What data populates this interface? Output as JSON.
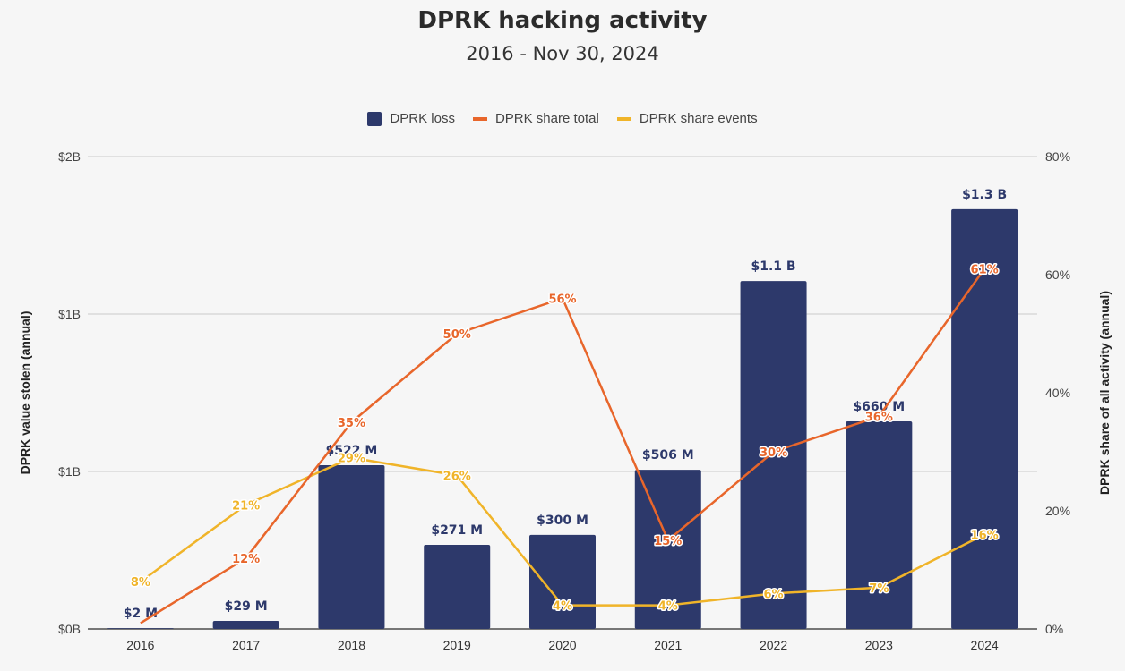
{
  "chart_data": {
    "type": "bar",
    "title": "DPRK hacking activity",
    "subtitle": "2016 - Nov 30, 2024",
    "categories": [
      "2016",
      "2017",
      "2018",
      "2019",
      "2020",
      "2021",
      "2022",
      "2023",
      "2024"
    ],
    "legend_position": "top-center",
    "left_axis": {
      "label": "DPRK value stolen (annual)",
      "range": [
        0,
        2
      ],
      "units": "billions USD",
      "ticks": [
        {
          "value": 0,
          "label": "$0B"
        },
        {
          "value": 0.6667,
          "label": "$1B"
        },
        {
          "value": 1.3333,
          "label": "$1B"
        },
        {
          "value": 2,
          "label": "$2B"
        }
      ]
    },
    "right_axis": {
      "label": "DPRK share of all activity (annual)",
      "range": [
        0,
        80
      ],
      "units": "percent",
      "ticks": [
        {
          "value": 0,
          "label": "0%"
        },
        {
          "value": 20,
          "label": "20%"
        },
        {
          "value": 40,
          "label": "40%"
        },
        {
          "value": 60,
          "label": "60%"
        },
        {
          "value": 80,
          "label": "80%"
        }
      ]
    },
    "grid": true,
    "series": [
      {
        "name": "DPRK loss",
        "kind": "bar",
        "axis": "left",
        "color": "#2d396b",
        "values": [
          0.003,
          0.034,
          0.693,
          0.356,
          0.398,
          0.674,
          1.473,
          0.879,
          1.777
        ],
        "labels": [
          "$2  M",
          "$29  M",
          "$522  M",
          "$271  M",
          "$300  M",
          "$506  M",
          "$1.1 B",
          "$660  M",
          "$1.3 B"
        ]
      },
      {
        "name": "DPRK share total",
        "kind": "line",
        "axis": "right",
        "color": "#e8662b",
        "values": [
          1,
          12,
          35,
          50,
          56,
          15,
          30,
          36,
          61
        ],
        "labels": [
          "",
          "12%",
          "35%",
          "50%",
          "56%",
          "15%",
          "30%",
          "36%",
          "61%"
        ]
      },
      {
        "name": "DPRK share events",
        "kind": "line",
        "axis": "right",
        "color": "#f0b429",
        "values": [
          8,
          21,
          29,
          26,
          4,
          4,
          6,
          7,
          16
        ],
        "labels": [
          "8%",
          "21%",
          "29%",
          "26%",
          "4%",
          "4%",
          "6%",
          "7%",
          "16%"
        ]
      }
    ]
  }
}
